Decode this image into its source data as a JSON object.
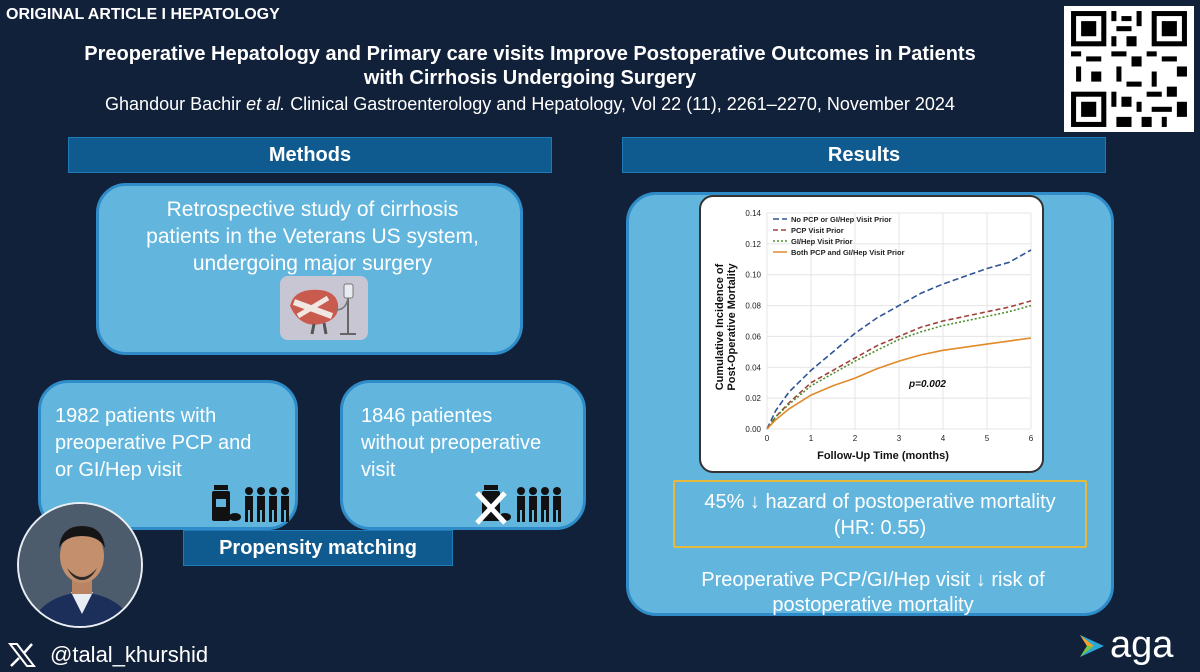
{
  "header": {
    "tag": "ORIGINAL ARTICLE I HEPATOLOGY",
    "title_line1": "Preoperative Hepatology and Primary care visits Improve Postoperative Outcomes in Patients",
    "title_line2": "with Cirrhosis Undergoing Surgery",
    "citation_authors": "Ghandour Bachir",
    "citation_etal": "et al.",
    "citation_rest": "Clinical Gastroenterology and Hepatology, Vol 22 (11), 2261–2270, November 2024"
  },
  "methods": {
    "heading": "Methods",
    "study_line1": "Retrospective study of cirrhosis",
    "study_line2": "patients in the Veterans US system,",
    "study_line3": "undergoing major surgery",
    "group1_line1": "1982 patients with",
    "group1_line2": "preoperative PCP and",
    "group1_line3": "or GI/Hep visit",
    "group2_line1": "1846 patientes",
    "group2_line2": "without preoperative",
    "group2_line3": "visit",
    "matching_label": "Propensity matching"
  },
  "results": {
    "heading": "Results",
    "hr_line1": "45% ↓ hazard of postoperative mortality",
    "hr_line2": "(HR: 0.55)",
    "conclusion_line1": "Preoperative PCP/GI/Hep visit ↓ risk of",
    "conclusion_line2": "postoperative mortality"
  },
  "footer": {
    "handle": "@talal_khurshid",
    "brand": "aga"
  },
  "colors": {
    "background": "#12213a",
    "section_bar": "#0f5a8e",
    "card": "#62b6de",
    "highlight_border": "#e7b93c"
  },
  "chart_data": {
    "type": "line",
    "title": "",
    "xlabel": "Follow-Up Time (months)",
    "ylabel_line1": "Cumulative Incidence of",
    "ylabel_line2": "Post-Operative Mortality",
    "xlim": [
      0,
      6
    ],
    "ylim": [
      0,
      0.14
    ],
    "x_ticks": [
      "0",
      "1",
      "2",
      "3",
      "4",
      "5",
      "6"
    ],
    "y_ticks": [
      "0.00",
      "0.02",
      "0.04",
      "0.06",
      "0.08",
      "0.10",
      "0.12",
      "0.14"
    ],
    "annotation": "p=0.002",
    "series": [
      {
        "name": "No PCP or GI/Hep Visit Prior",
        "color": "#2f5597",
        "dash": "6,3",
        "x": [
          0,
          0.2,
          0.5,
          1,
          1.5,
          2,
          2.5,
          3,
          3.5,
          4,
          4.5,
          5,
          5.5,
          6
        ],
        "y": [
          0,
          0.012,
          0.024,
          0.038,
          0.05,
          0.062,
          0.072,
          0.08,
          0.088,
          0.094,
          0.099,
          0.104,
          0.108,
          0.116
        ]
      },
      {
        "name": "PCP Visit Prior",
        "color": "#a0403a",
        "dash": "5,3",
        "x": [
          0,
          0.2,
          0.5,
          1,
          1.5,
          2,
          2.5,
          3,
          3.5,
          4,
          4.5,
          5,
          5.5,
          6
        ],
        "y": [
          0,
          0.008,
          0.017,
          0.03,
          0.038,
          0.046,
          0.054,
          0.06,
          0.066,
          0.07,
          0.073,
          0.076,
          0.079,
          0.083
        ]
      },
      {
        "name": "GI/Hep Visit Prior",
        "color": "#4f8f2f",
        "dash": "2,2",
        "x": [
          0,
          0.2,
          0.5,
          1,
          1.5,
          2,
          2.5,
          3,
          3.5,
          4,
          4.5,
          5,
          5.5,
          6
        ],
        "y": [
          0,
          0.008,
          0.016,
          0.028,
          0.036,
          0.044,
          0.051,
          0.058,
          0.063,
          0.067,
          0.07,
          0.073,
          0.076,
          0.08
        ]
      },
      {
        "name": "Both PCP and GI/Hep Visit Prior",
        "color": "#e08a2a",
        "dash": "",
        "x": [
          0,
          0.2,
          0.5,
          1,
          1.5,
          2,
          2.5,
          3,
          3.5,
          4,
          4.5,
          5,
          5.5,
          6
        ],
        "y": [
          0,
          0.006,
          0.013,
          0.022,
          0.028,
          0.033,
          0.039,
          0.044,
          0.048,
          0.051,
          0.053,
          0.055,
          0.057,
          0.059
        ]
      }
    ]
  }
}
